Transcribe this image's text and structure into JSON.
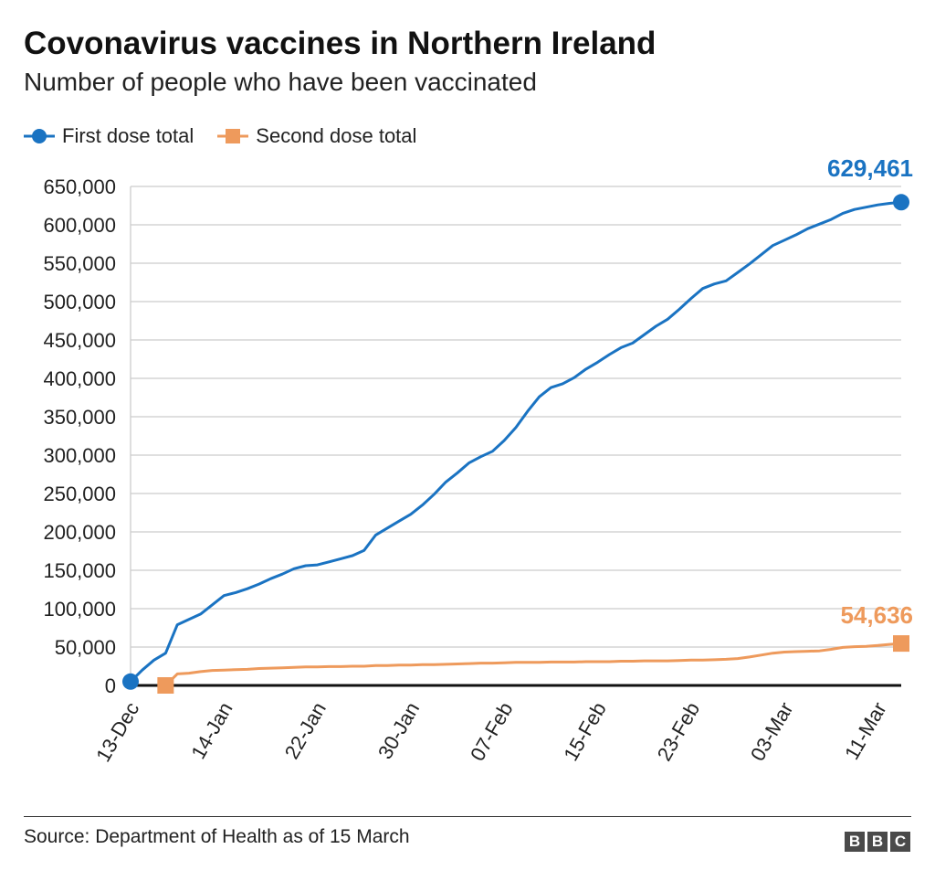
{
  "chart_data": {
    "type": "line",
    "title": "Covonavirus vaccines in Northern Ireland",
    "subtitle": "Number of people who have been vaccinated",
    "source": "Source: Department of Health as of 15 March",
    "logo": "BBC",
    "x_tick_labels": [
      "13-Dec",
      "14-Jan",
      "22-Jan",
      "30-Jan",
      "07-Feb",
      "15-Feb",
      "23-Feb",
      "03-Mar",
      "11-Mar"
    ],
    "x_tick_every": 8,
    "ylim": [
      0,
      650000
    ],
    "y_ticks": [
      0,
      50000,
      100000,
      150000,
      200000,
      250000,
      300000,
      350000,
      400000,
      450000,
      500000,
      550000,
      600000,
      650000
    ],
    "y_tick_labels": [
      "0",
      "50,000",
      "100,000",
      "150,000",
      "200,000",
      "250,000",
      "300,000",
      "350,000",
      "400,000",
      "450,000",
      "500,000",
      "550,000",
      "600,000",
      "650,000"
    ],
    "grid": true,
    "legend_position": "top-left",
    "series": [
      {
        "name": "First dose total",
        "color": "#1a73c2",
        "marker": "circle",
        "end_label": "629,461",
        "values": [
          5000,
          20000,
          33000,
          42000,
          79000,
          86000,
          93000,
          105000,
          117000,
          121000,
          126000,
          132000,
          139000,
          145000,
          152000,
          156000,
          157000,
          161000,
          165000,
          169000,
          176000,
          196000,
          205000,
          214000,
          223000,
          235000,
          249000,
          265000,
          277000,
          290000,
          298000,
          305000,
          319000,
          336000,
          357000,
          376000,
          388000,
          393000,
          401000,
          412000,
          421000,
          431000,
          440000,
          446000,
          457000,
          468000,
          477000,
          490000,
          504000,
          517000,
          523000,
          527000,
          538000,
          549000,
          561000,
          573000,
          580000,
          587000,
          595000,
          601000,
          607000,
          615000,
          620000,
          623000,
          626000,
          628000,
          629461
        ]
      },
      {
        "name": "Second dose total",
        "color": "#ee9a5c",
        "marker": "square",
        "end_label": "54,636",
        "values": [
          null,
          null,
          null,
          0,
          15000,
          16000,
          18000,
          19500,
          20000,
          20500,
          21000,
          22000,
          22500,
          23000,
          23500,
          24000,
          24000,
          24500,
          24500,
          25000,
          25000,
          26000,
          26000,
          26500,
          26500,
          27000,
          27000,
          27500,
          28000,
          28500,
          29000,
          29000,
          29500,
          30000,
          30000,
          30000,
          30500,
          30500,
          30500,
          31000,
          31000,
          31000,
          31500,
          31500,
          32000,
          32000,
          32000,
          32500,
          33000,
          33000,
          33500,
          34000,
          35000,
          37000,
          39500,
          42000,
          43500,
          44000,
          44500,
          45000,
          47000,
          49500,
          50500,
          51000,
          52000,
          53500,
          54636
        ]
      }
    ]
  }
}
